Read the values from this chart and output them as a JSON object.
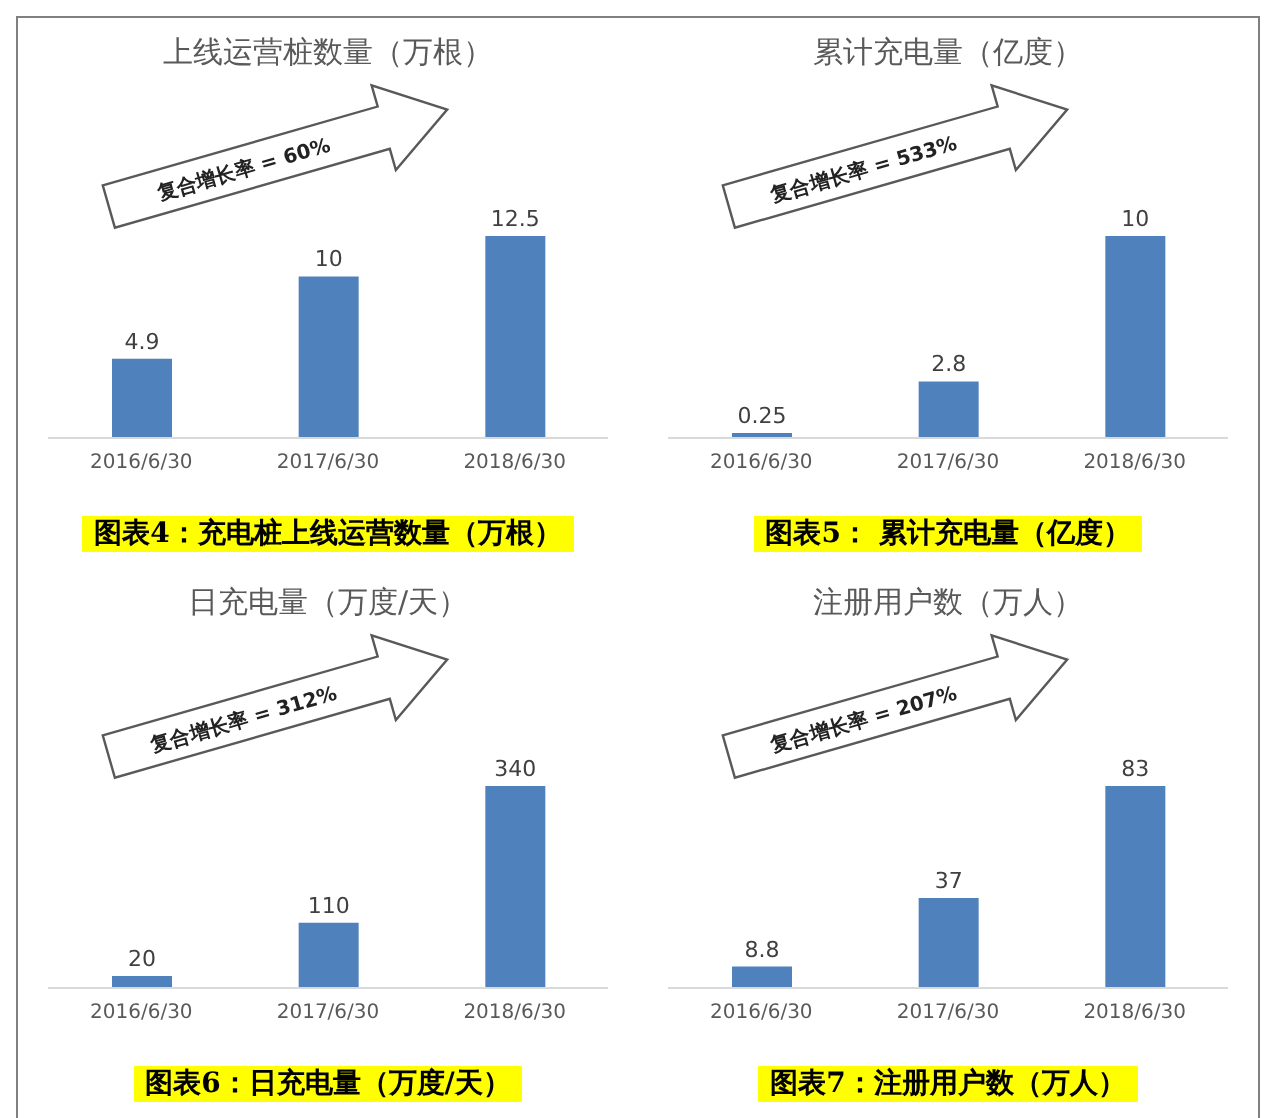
{
  "chart_data": [
    {
      "type": "bar",
      "title": "上线运营桩数量（万根）",
      "categories": [
        "2016/6/30",
        "2017/6/30",
        "2018/6/30"
      ],
      "values": [
        4.9,
        10,
        12.5
      ],
      "color": "#4f81bd",
      "data_labels": true,
      "annotations": [
        "复合增长率 = 60%",
        "图表4：充电桩上线运营数量（万根）"
      ]
    },
    {
      "type": "bar",
      "title": "累计充电量（亿度）",
      "categories": [
        "2016/6/30",
        "2017/6/30",
        "2018/6/30"
      ],
      "values": [
        0.25,
        2.8,
        10
      ],
      "color": "#4f81bd",
      "data_labels": true,
      "annotations": [
        "复合增长率 = 533%",
        "图表5： 累计充电量（亿度）"
      ]
    },
    {
      "type": "bar",
      "title": "日充电量（万度/天）",
      "categories": [
        "2016/6/30",
        "2017/6/30",
        "2018/6/30"
      ],
      "values": [
        20,
        110,
        340
      ],
      "color": "#4f81bd",
      "data_labels": true,
      "annotations": [
        "复合增长率 = 312%",
        "图表6：日充电量（万度/天）"
      ]
    },
    {
      "type": "bar",
      "title": "注册用户数（万人）",
      "categories": [
        "2016/6/30",
        "2017/6/30",
        "2018/6/30"
      ],
      "values": [
        8.8,
        37,
        83
      ],
      "color": "#4f81bd",
      "data_labels": true,
      "annotations": [
        "复合增长率 = 207%",
        "图表7：注册用户数（万人）"
      ]
    }
  ]
}
